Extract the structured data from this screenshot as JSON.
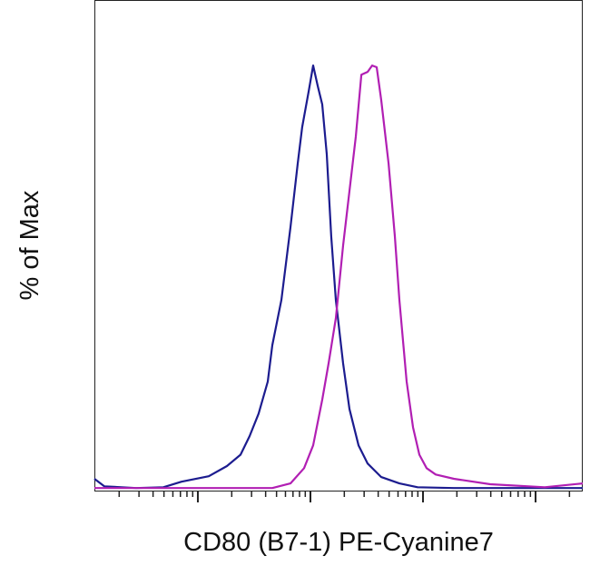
{
  "chart_data": {
    "type": "line",
    "x_label": "CD80 (B7-1) PE-Cyanine7",
    "y_label": "% of Max",
    "xlim": [
      0.081,
      4.419
    ],
    "ylim": [
      -0.6,
      115.5
    ],
    "xticks": [
      1,
      2,
      3,
      4
    ],
    "series": [
      {
        "color": "#1c1c8f",
        "x": [
          0.081,
          0.169,
          0.452,
          0.694,
          0.855,
          1.097,
          1.258,
          1.379,
          1.46,
          1.54,
          1.621,
          1.661,
          1.742,
          1.823,
          1.887,
          1.927,
          1.984,
          2.024,
          2.065,
          2.105,
          2.145,
          2.185,
          2.226,
          2.29,
          2.347,
          2.427,
          2.508,
          2.629,
          2.79,
          2.952,
          3.274,
          4.419
        ],
        "values": [
          2.2,
          0.4,
          0,
          0.2,
          1.5,
          2.8,
          5.2,
          7.9,
          12.3,
          17.6,
          25.2,
          33.8,
          44.5,
          61.7,
          76.8,
          85.4,
          93.8,
          100,
          95.1,
          90.8,
          79.0,
          59.6,
          44.5,
          29.5,
          18.7,
          10.1,
          5.8,
          2.6,
          1.1,
          0.2,
          0,
          0
        ]
      },
      {
        "color": "#b11fb3",
        "x": [
          0.081,
          1.661,
          1.823,
          1.944,
          2.024,
          2.105,
          2.161,
          2.226,
          2.29,
          2.347,
          2.403,
          2.452,
          2.508,
          2.548,
          2.589,
          2.629,
          2.694,
          2.75,
          2.79,
          2.855,
          2.911,
          2.968,
          3.032,
          3.113,
          3.274,
          3.597,
          4.081,
          4.419
        ],
        "values": [
          0,
          0,
          1.1,
          4.7,
          10.1,
          20.9,
          29.5,
          40.2,
          57.4,
          70.3,
          83.2,
          97.8,
          98.5,
          100,
          99.6,
          91.8,
          76.8,
          59.6,
          44.5,
          25.2,
          14.4,
          7.9,
          4.7,
          3.2,
          2.2,
          0.9,
          0.2,
          1.1
        ]
      }
    ]
  }
}
